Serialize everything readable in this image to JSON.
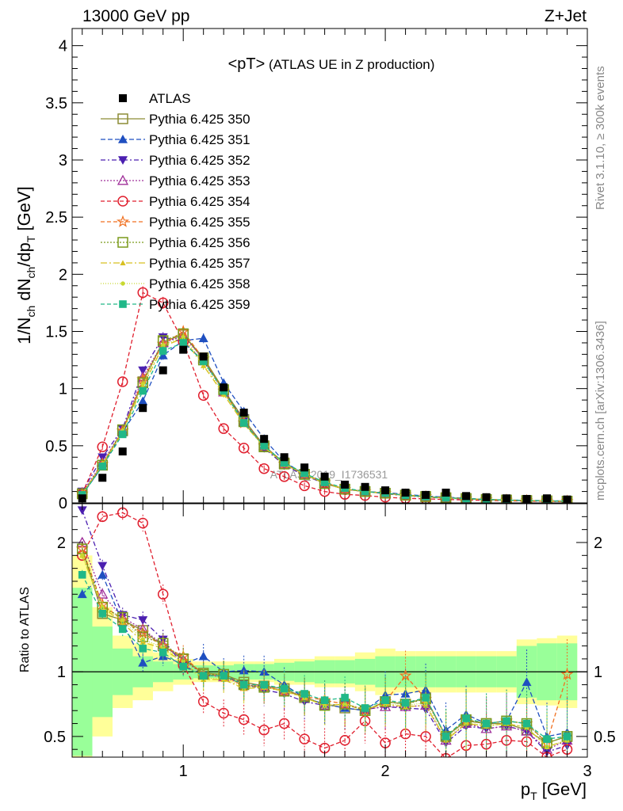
{
  "header": {
    "left": "13000 GeV pp",
    "right": "Z+Jet"
  },
  "side_text": {
    "rivet": "Rivet 3.1.10, ≥ 300k events",
    "mcplots": "mcplots.cern.ch [arXiv:1306.3436]"
  },
  "chart_data": [
    {
      "type": "line",
      "title": "<pT> (ATLAS UE in Z production)",
      "title_main": "<pT>",
      "title_rest": " (ATLAS UE in Z production)",
      "ylabel": "1/N_ch dN_ch/dp_T [GeV]",
      "ylabel_parts": [
        "1/N",
        "ch",
        " dN",
        "ch",
        "/dp",
        "T",
        " [GeV]"
      ],
      "xlabel": "p_T [GeV]",
      "xlabel_parts": [
        "p",
        "T",
        " [GeV]"
      ],
      "xlim": [
        0.45,
        3.0
      ],
      "ylim": [
        0,
        4.15
      ],
      "x_ticks": [
        "1",
        "2",
        "3"
      ],
      "y_ticks": [
        "0",
        "0.5",
        "1",
        "1.5",
        "2",
        "2.5",
        "3",
        "3.5",
        "4"
      ],
      "watermark": "ATLAS_2019_I1736531",
      "legend_position": "top-left",
      "x": [
        0.5,
        0.6,
        0.7,
        0.8,
        0.9,
        1.0,
        1.1,
        1.2,
        1.3,
        1.4,
        1.5,
        1.6,
        1.7,
        1.8,
        1.9,
        2.0,
        2.1,
        2.2,
        2.3,
        2.4,
        2.5,
        2.6,
        2.7,
        2.8,
        2.9
      ],
      "data": {
        "name": "ATLAS",
        "values": [
          0.04,
          0.22,
          0.45,
          0.83,
          1.16,
          1.34,
          1.28,
          1.01,
          0.79,
          0.56,
          0.4,
          0.31,
          0.23,
          0.16,
          0.14,
          0.11,
          0.09,
          0.07,
          0.09,
          0.06,
          0.05,
          0.04,
          0.035,
          0.04,
          0.03
        ]
      },
      "series": [
        {
          "name": "Pythia 6.425 350",
          "color": "#8c8c35",
          "marker": "square-open",
          "dash": "",
          "values": [
            0.08,
            0.33,
            0.63,
            1.06,
            1.41,
            1.47,
            1.27,
            0.99,
            0.73,
            0.5,
            0.35,
            0.25,
            0.17,
            0.12,
            0.1,
            0.085,
            0.068,
            0.056,
            0.045,
            0.038,
            0.03,
            0.025,
            0.02,
            0.018,
            0.015
          ]
        },
        {
          "name": "Pythia 6.425 351",
          "color": "#1f4fc0",
          "marker": "triangle-up",
          "dash": "6,3",
          "values": [
            0.07,
            0.32,
            0.62,
            0.89,
            1.29,
            1.42,
            1.44,
            1.05,
            0.8,
            0.56,
            0.36,
            0.25,
            0.17,
            0.12,
            0.1,
            0.09,
            0.075,
            0.06,
            0.05,
            0.04,
            0.03,
            0.026,
            0.022,
            0.02,
            0.016
          ]
        },
        {
          "name": "Pythia 6.425 352",
          "color": "#4b1fb0",
          "marker": "triangle-down",
          "dash": "6,3,2,3",
          "values": [
            0.1,
            0.4,
            0.65,
            1.16,
            1.45,
            1.41,
            1.24,
            0.98,
            0.72,
            0.48,
            0.33,
            0.24,
            0.17,
            0.12,
            0.1,
            0.08,
            0.065,
            0.05,
            0.04,
            0.035,
            0.028,
            0.023,
            0.019,
            0.015,
            0.013
          ]
        },
        {
          "name": "Pythia 6.425 353",
          "color": "#a0309a",
          "marker": "triangle-open",
          "dash": "2,2",
          "values": [
            0.09,
            0.35,
            0.64,
            1.1,
            1.4,
            1.46,
            1.26,
            0.97,
            0.71,
            0.5,
            0.34,
            0.25,
            0.17,
            0.12,
            0.1,
            0.08,
            0.066,
            0.052,
            0.042,
            0.036,
            0.028,
            0.023,
            0.019,
            0.016,
            0.014
          ]
        },
        {
          "name": "Pythia 6.425 354",
          "color": "#e01f2e",
          "marker": "circle-open",
          "dash": "5,3",
          "values": [
            0.08,
            0.49,
            1.06,
            1.84,
            1.75,
            1.41,
            0.94,
            0.65,
            0.48,
            0.3,
            0.23,
            0.15,
            0.1,
            0.075,
            0.065,
            0.05,
            0.04,
            0.035,
            0.03,
            0.026,
            0.022,
            0.019,
            0.016,
            0.014,
            0.012
          ]
        },
        {
          "name": "Pythia 6.425 355",
          "color": "#f07020",
          "marker": "star-open",
          "dash": "5,3",
          "values": [
            0.08,
            0.34,
            0.63,
            1.08,
            1.39,
            1.5,
            1.26,
            0.98,
            0.7,
            0.5,
            0.34,
            0.25,
            0.18,
            0.12,
            0.1,
            0.085,
            0.07,
            0.055,
            0.045,
            0.038,
            0.03,
            0.025,
            0.021,
            0.018,
            0.015
          ]
        },
        {
          "name": "Pythia 6.425 356",
          "color": "#7a9a1a",
          "marker": "square-open",
          "dash": "2,2",
          "values": [
            0.08,
            0.33,
            0.64,
            1.05,
            1.42,
            1.48,
            1.25,
            0.99,
            0.71,
            0.49,
            0.34,
            0.25,
            0.17,
            0.12,
            0.1,
            0.085,
            0.068,
            0.055,
            0.045,
            0.038,
            0.03,
            0.025,
            0.021,
            0.018,
            0.015
          ]
        },
        {
          "name": "Pythia 6.425 357",
          "color": "#d8c020",
          "marker": "tri-small",
          "dash": "8,3,2,3",
          "values": [
            0.08,
            0.33,
            0.62,
            1.02,
            1.37,
            1.44,
            1.2,
            0.95,
            0.69,
            0.49,
            0.34,
            0.25,
            0.17,
            0.12,
            0.1,
            0.082,
            0.066,
            0.052,
            0.042,
            0.036,
            0.029,
            0.024,
            0.02,
            0.017,
            0.014
          ]
        },
        {
          "name": "Pythia 6.425 358",
          "color": "#c8d830",
          "marker": "dot",
          "dash": "1,2",
          "values": [
            0.08,
            0.34,
            0.63,
            1.04,
            1.38,
            1.45,
            1.22,
            0.96,
            0.7,
            0.49,
            0.34,
            0.25,
            0.17,
            0.12,
            0.1,
            0.083,
            0.067,
            0.053,
            0.043,
            0.037,
            0.029,
            0.024,
            0.02,
            0.017,
            0.014
          ]
        },
        {
          "name": "Pythia 6.425 359",
          "color": "#20b888",
          "marker": "square",
          "dash": "5,3",
          "values": [
            0.07,
            0.32,
            0.6,
            0.98,
            1.33,
            1.4,
            1.24,
            0.98,
            0.7,
            0.5,
            0.35,
            0.26,
            0.18,
            0.13,
            0.1,
            0.085,
            0.068,
            0.055,
            0.045,
            0.038,
            0.03,
            0.025,
            0.021,
            0.018,
            0.015
          ]
        }
      ]
    },
    {
      "type": "line",
      "ylabel": "Ratio to ATLAS",
      "xlim": [
        0.45,
        3.0
      ],
      "ylim": [
        0.34,
        2.3
      ],
      "y_ticks": [
        "0.5",
        "1",
        "2"
      ],
      "band_edges": [
        0.45,
        0.55,
        0.65,
        0.75,
        0.85,
        0.95,
        1.05,
        1.15,
        1.25,
        1.35,
        1.45,
        1.55,
        1.65,
        1.75,
        1.85,
        1.95,
        2.05,
        2.15,
        2.25,
        2.35,
        2.45,
        2.55,
        2.65,
        2.75,
        2.85,
        2.95
      ],
      "band_stat": [
        0.65,
        0.35,
        0.18,
        0.12,
        0.08,
        0.06,
        0.05,
        0.05,
        0.06,
        0.06,
        0.07,
        0.08,
        0.09,
        0.09,
        0.1,
        0.12,
        0.12,
        0.12,
        0.12,
        0.12,
        0.12,
        0.12,
        0.2,
        0.22,
        0.22,
        0.25
      ],
      "band_total": [
        0.9,
        0.5,
        0.28,
        0.22,
        0.15,
        0.1,
        0.08,
        0.08,
        0.08,
        0.08,
        0.1,
        0.1,
        0.12,
        0.12,
        0.15,
        0.18,
        0.16,
        0.16,
        0.16,
        0.16,
        0.16,
        0.16,
        0.25,
        0.26,
        0.28,
        0.35
      ],
      "series": [
        {
          "name": "Pythia 6.425 350",
          "values": [
            1.95,
            1.45,
            1.4,
            1.32,
            1.2,
            1.1,
            0.99,
            0.98,
            0.92,
            0.89,
            0.87,
            0.8,
            0.75,
            0.72,
            0.7,
            0.77,
            0.75,
            0.8,
            0.5,
            0.62,
            0.6,
            0.6,
            0.55,
            0.45,
            0.5
          ]
        },
        {
          "name": "Pythia 6.425 351",
          "values": [
            1.6,
            1.75,
            1.38,
            1.07,
            1.12,
            1.06,
            1.12,
            1.0,
            1.01,
            1.0,
            0.9,
            0.8,
            0.75,
            0.72,
            0.7,
            0.82,
            0.83,
            0.86,
            0.55,
            0.67,
            0.6,
            0.62,
            0.92,
            0.5,
            0.53
          ]
        },
        {
          "name": "Pythia 6.425 352",
          "values": [
            2.25,
            1.82,
            1.44,
            1.4,
            1.25,
            1.05,
            0.97,
            0.97,
            0.91,
            0.86,
            0.83,
            0.77,
            0.74,
            0.75,
            0.71,
            0.73,
            0.72,
            0.71,
            0.45,
            0.58,
            0.56,
            0.58,
            0.54,
            0.38,
            0.43
          ]
        },
        {
          "name": "Pythia 6.425 353",
          "values": [
            2.0,
            1.6,
            1.42,
            1.33,
            1.21,
            1.09,
            0.98,
            0.96,
            0.9,
            0.89,
            0.85,
            0.81,
            0.74,
            0.75,
            0.71,
            0.73,
            0.73,
            0.74,
            0.47,
            0.6,
            0.56,
            0.58,
            0.54,
            0.4,
            0.47
          ]
        },
        {
          "name": "Pythia 6.425 354",
          "values": [
            1.9,
            2.2,
            2.23,
            2.15,
            1.6,
            1.05,
            0.77,
            0.68,
            0.63,
            0.55,
            0.6,
            0.48,
            0.41,
            0.47,
            0.62,
            0.45,
            0.52,
            0.5,
            0.33,
            0.43,
            0.44,
            0.47,
            0.46,
            0.34,
            0.4
          ]
        },
        {
          "name": "Pythia 6.425 355",
          "values": [
            1.95,
            1.52,
            1.4,
            1.3,
            1.2,
            1.12,
            0.98,
            0.97,
            0.89,
            0.89,
            0.85,
            0.81,
            0.78,
            0.75,
            0.7,
            0.77,
            0.97,
            0.79,
            0.5,
            0.63,
            0.6,
            0.62,
            0.6,
            0.45,
            0.98
          ]
        },
        {
          "name": "Pythia 6.425 356",
          "values": [
            1.95,
            1.5,
            1.42,
            1.27,
            1.22,
            1.1,
            0.98,
            0.98,
            0.9,
            0.88,
            0.85,
            0.81,
            0.74,
            0.75,
            0.7,
            0.77,
            0.75,
            0.79,
            0.5,
            0.63,
            0.6,
            0.62,
            0.6,
            0.45,
            0.5
          ]
        },
        {
          "name": "Pythia 6.425 357",
          "values": [
            1.9,
            1.5,
            1.38,
            1.23,
            1.18,
            1.07,
            0.94,
            0.94,
            0.87,
            0.88,
            0.85,
            0.8,
            0.74,
            0.75,
            0.71,
            0.75,
            0.73,
            0.74,
            0.47,
            0.6,
            0.58,
            0.6,
            0.57,
            0.42,
            0.47
          ]
        },
        {
          "name": "Pythia 6.425 358",
          "values": [
            1.9,
            1.5,
            1.4,
            1.25,
            1.19,
            1.08,
            0.95,
            0.95,
            0.88,
            0.88,
            0.85,
            0.8,
            0.74,
            0.75,
            0.71,
            0.75,
            0.74,
            0.76,
            0.48,
            0.61,
            0.58,
            0.6,
            0.57,
            0.42,
            0.47
          ]
        },
        {
          "name": "Pythia 6.425 359",
          "values": [
            1.75,
            1.45,
            1.33,
            1.18,
            1.15,
            1.04,
            0.97,
            0.97,
            0.9,
            0.9,
            0.87,
            0.83,
            0.78,
            0.8,
            0.72,
            0.78,
            0.76,
            0.8,
            0.5,
            0.64,
            0.6,
            0.62,
            0.6,
            0.48,
            0.5
          ]
        }
      ]
    }
  ]
}
